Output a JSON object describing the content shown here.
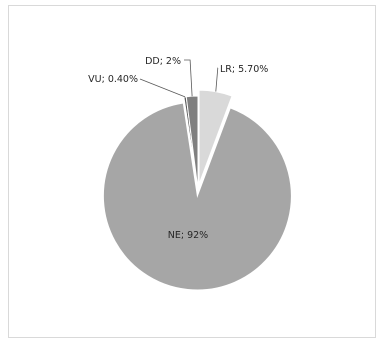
{
  "chart_data": {
    "type": "pie",
    "title": "",
    "slices": [
      {
        "name": "LR",
        "value": 5.7,
        "label": "LR; 5.70%",
        "color": "#d9d9d9",
        "exploded": true
      },
      {
        "name": "NE",
        "value": 92,
        "label": "NE; 92%",
        "color": "#a6a6a6",
        "exploded": true
      },
      {
        "name": "VU",
        "value": 0.4,
        "label": "VU; 0.40%",
        "color": "#595959",
        "exploded": false
      },
      {
        "name": "DD",
        "value": 2,
        "label": "DD; 2%",
        "color": "#7f7f7f",
        "exploded": false
      }
    ],
    "legend": "none",
    "data_labels": "category; value"
  }
}
